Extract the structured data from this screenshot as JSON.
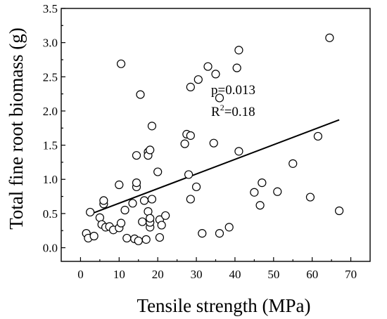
{
  "chart_data": {
    "type": "scatter",
    "xlabel": "Tensile strength (MPa)",
    "ylabel": "Total fine root biomass (g)",
    "xlim": [
      -5,
      75
    ],
    "ylim": [
      -0.2,
      3.5
    ],
    "x_ticks": [
      0,
      10,
      20,
      30,
      40,
      50,
      60,
      70
    ],
    "y_ticks": [
      0.0,
      0.5,
      1.0,
      1.5,
      2.0,
      2.5,
      3.0,
      3.5
    ],
    "x_tick_labels": [
      "0",
      "10",
      "20",
      "30",
      "40",
      "50",
      "60",
      "70"
    ],
    "y_tick_labels": [
      "0.0",
      "0.5",
      "1.0",
      "1.5",
      "2.0",
      "2.5",
      "3.0",
      "3.5"
    ],
    "annotations": {
      "p": "p=0.013",
      "r2_prefix": "R",
      "r2_sup": "2",
      "r2_value": "=0.18"
    },
    "fit_line": {
      "x": [
        2.5,
        67
      ],
      "y": [
        0.49,
        1.87
      ]
    },
    "marker_color": "#000000",
    "points": [
      {
        "x": 1.5,
        "y": 0.21
      },
      {
        "x": 2,
        "y": 0.14
      },
      {
        "x": 2.5,
        "y": 0.52
      },
      {
        "x": 3.5,
        "y": 0.17
      },
      {
        "x": 5,
        "y": 0.44
      },
      {
        "x": 5.5,
        "y": 0.34
      },
      {
        "x": 6,
        "y": 0.64
      },
      {
        "x": 6,
        "y": 0.69
      },
      {
        "x": 6.5,
        "y": 0.3
      },
      {
        "x": 7.5,
        "y": 0.31
      },
      {
        "x": 8.5,
        "y": 0.26
      },
      {
        "x": 10,
        "y": 0.92
      },
      {
        "x": 10,
        "y": 0.29
      },
      {
        "x": 10.5,
        "y": 0.36
      },
      {
        "x": 10.5,
        "y": 2.69
      },
      {
        "x": 11.5,
        "y": 0.55
      },
      {
        "x": 12,
        "y": 0.14
      },
      {
        "x": 13.5,
        "y": 0.65
      },
      {
        "x": 14,
        "y": 0.13
      },
      {
        "x": 14.5,
        "y": 0.89
      },
      {
        "x": 14.5,
        "y": 0.95
      },
      {
        "x": 14.5,
        "y": 1.35
      },
      {
        "x": 15,
        "y": 0.1
      },
      {
        "x": 15.5,
        "y": 2.24
      },
      {
        "x": 16,
        "y": 0.38
      },
      {
        "x": 16.5,
        "y": 0.69
      },
      {
        "x": 17,
        "y": 0.12
      },
      {
        "x": 17.5,
        "y": 0.53
      },
      {
        "x": 17.5,
        "y": 1.4
      },
      {
        "x": 17.5,
        "y": 1.35
      },
      {
        "x": 18,
        "y": 0.3
      },
      {
        "x": 18,
        "y": 0.37
      },
      {
        "x": 18,
        "y": 0.43
      },
      {
        "x": 18,
        "y": 1.43
      },
      {
        "x": 18.5,
        "y": 0.71
      },
      {
        "x": 18.5,
        "y": 1.78
      },
      {
        "x": 20,
        "y": 1.11
      },
      {
        "x": 20.5,
        "y": 0.41
      },
      {
        "x": 20.5,
        "y": 0.15
      },
      {
        "x": 21,
        "y": 0.33
      },
      {
        "x": 22,
        "y": 0.47
      },
      {
        "x": 27,
        "y": 1.52
      },
      {
        "x": 27.5,
        "y": 1.66
      },
      {
        "x": 28,
        "y": 1.07
      },
      {
        "x": 28.5,
        "y": 2.35
      },
      {
        "x": 28.5,
        "y": 1.64
      },
      {
        "x": 28.5,
        "y": 0.71
      },
      {
        "x": 30,
        "y": 0.89
      },
      {
        "x": 30.5,
        "y": 2.46
      },
      {
        "x": 31.5,
        "y": 0.21
      },
      {
        "x": 33,
        "y": 2.65
      },
      {
        "x": 34.5,
        "y": 1.53
      },
      {
        "x": 35,
        "y": 2.54
      },
      {
        "x": 36,
        "y": 0.21
      },
      {
        "x": 36,
        "y": 2.19
      },
      {
        "x": 38.5,
        "y": 0.3
      },
      {
        "x": 40.5,
        "y": 2.63
      },
      {
        "x": 41,
        "y": 2.89
      },
      {
        "x": 41,
        "y": 1.41
      },
      {
        "x": 45,
        "y": 0.81
      },
      {
        "x": 46.5,
        "y": 0.62
      },
      {
        "x": 47,
        "y": 0.95
      },
      {
        "x": 51,
        "y": 0.82
      },
      {
        "x": 55,
        "y": 1.23
      },
      {
        "x": 59.5,
        "y": 0.74
      },
      {
        "x": 61.5,
        "y": 1.63
      },
      {
        "x": 64.5,
        "y": 3.07
      },
      {
        "x": 67,
        "y": 0.54
      }
    ]
  }
}
